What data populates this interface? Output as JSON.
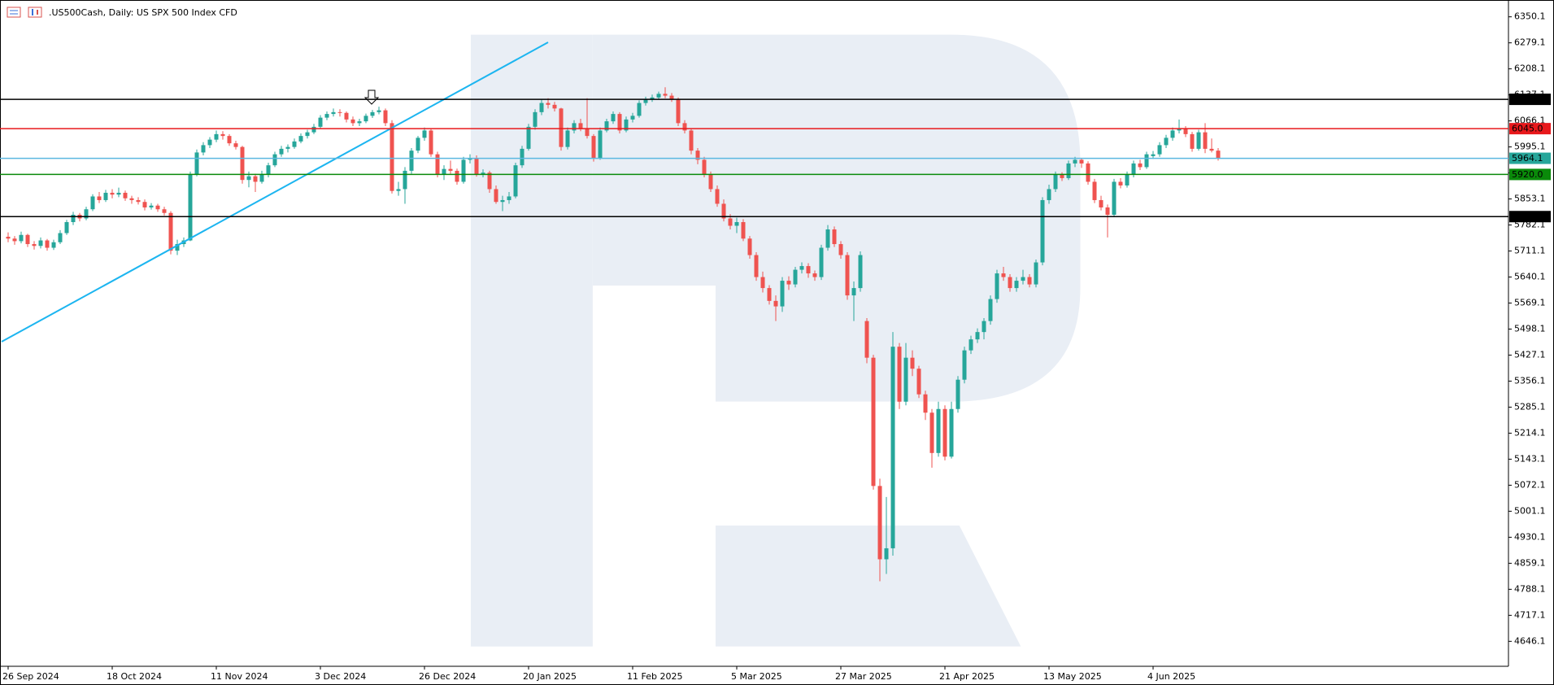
{
  "chart_data": {
    "type": "candlestick",
    "title": ".US500Cash, Daily:  US SPX 500 Index CFD",
    "up_color": "#26a69a",
    "down_color": "#ef5350",
    "ylim": [
      4578,
      6396
    ],
    "yticks": [
      6350.1,
      6279.1,
      6208.1,
      6137.1,
      6066.1,
      5995.1,
      5924.1,
      5853.1,
      5782.1,
      5711.1,
      5640.1,
      5569.1,
      5498.1,
      5427.1,
      5356.1,
      5285.1,
      5214.1,
      5143.1,
      5072.1,
      5001.1,
      4930.1,
      4859.1,
      4788.1,
      4717.1,
      4646.1
    ],
    "levels": [
      {
        "value": 6125,
        "label": "6125.0",
        "color": "#000000"
      },
      {
        "value": 6045,
        "label": "6045.0",
        "color": "#e8191c"
      },
      {
        "value": 5964.1,
        "color": "#5bb8e0",
        "box_color": "#26a69a"
      },
      {
        "value": 5920,
        "label": "5920.0",
        "color": "#0a8a0a"
      },
      {
        "value": 5805,
        "label": "5805.0",
        "color": "#000000"
      }
    ],
    "categories": [
      "26 Sep 2024",
      null,
      null,
      null,
      null,
      null,
      null,
      null,
      null,
      null,
      null,
      null,
      null,
      null,
      null,
      null,
      "18 Oct 2024",
      null,
      null,
      null,
      null,
      null,
      null,
      null,
      null,
      null,
      null,
      null,
      null,
      null,
      null,
      null,
      "11 Nov 2024",
      null,
      null,
      null,
      null,
      null,
      null,
      null,
      null,
      null,
      null,
      null,
      null,
      null,
      null,
      null,
      "3 Dec 2024",
      null,
      null,
      null,
      null,
      null,
      null,
      null,
      null,
      null,
      null,
      null,
      null,
      null,
      null,
      null,
      "26 Dec 2024",
      null,
      null,
      null,
      null,
      null,
      null,
      null,
      null,
      null,
      null,
      null,
      null,
      null,
      null,
      null,
      "20 Jan 2025",
      null,
      null,
      null,
      null,
      null,
      null,
      null,
      null,
      null,
      null,
      null,
      null,
      null,
      null,
      null,
      "11 Feb 2025",
      null,
      null,
      null,
      null,
      null,
      null,
      null,
      null,
      null,
      null,
      null,
      null,
      null,
      null,
      null,
      "5 Mar 2025",
      null,
      null,
      null,
      null,
      null,
      null,
      null,
      null,
      null,
      null,
      null,
      null,
      null,
      null,
      null,
      "27 Mar 2025",
      null,
      null,
      null,
      null,
      null,
      null,
      null,
      null,
      null,
      null,
      null,
      null,
      null,
      null,
      null,
      "21 Apr 2025",
      null,
      null,
      null,
      null,
      null,
      null,
      null,
      null,
      null,
      null,
      null,
      null,
      null,
      null,
      null,
      "13 May 2025",
      null,
      null,
      null,
      null,
      null,
      null,
      null,
      null,
      null,
      null,
      null,
      null,
      null,
      null,
      null,
      "4 Jun 2025",
      null,
      null,
      null,
      null,
      null,
      null,
      null,
      null,
      null,
      null
    ],
    "candles": [
      [
        5750,
        5762,
        5735,
        5745
      ],
      [
        5745,
        5752,
        5728,
        5738
      ],
      [
        5738,
        5764,
        5732,
        5755
      ],
      [
        5755,
        5758,
        5722,
        5730
      ],
      [
        5730,
        5738,
        5715,
        5725
      ],
      [
        5725,
        5748,
        5718,
        5740
      ],
      [
        5740,
        5744,
        5712,
        5720
      ],
      [
        5720,
        5742,
        5714,
        5735
      ],
      [
        5735,
        5768,
        5730,
        5760
      ],
      [
        5760,
        5796,
        5755,
        5790
      ],
      [
        5790,
        5818,
        5782,
        5810
      ],
      [
        5810,
        5815,
        5792,
        5800
      ],
      [
        5800,
        5832,
        5795,
        5825
      ],
      [
        5825,
        5866,
        5820,
        5860
      ],
      [
        5860,
        5872,
        5842,
        5850
      ],
      [
        5850,
        5878,
        5845,
        5870
      ],
      [
        5870,
        5880,
        5855,
        5865
      ],
      [
        5865,
        5884,
        5858,
        5870
      ],
      [
        5870,
        5876,
        5848,
        5855
      ],
      [
        5855,
        5862,
        5840,
        5850
      ],
      [
        5850,
        5858,
        5838,
        5845
      ],
      [
        5845,
        5852,
        5822,
        5830
      ],
      [
        5830,
        5842,
        5824,
        5835
      ],
      [
        5835,
        5840,
        5818,
        5825
      ],
      [
        5825,
        5832,
        5808,
        5815
      ],
      [
        5815,
        5820,
        5702,
        5712
      ],
      [
        5712,
        5742,
        5700,
        5730
      ],
      [
        5730,
        5748,
        5722,
        5740
      ],
      [
        5740,
        5928,
        5738,
        5920
      ],
      [
        5920,
        5988,
        5915,
        5980
      ],
      [
        5980,
        6008,
        5972,
        6000
      ],
      [
        6000,
        6022,
        5992,
        6015
      ],
      [
        6015,
        6040,
        6008,
        6030
      ],
      [
        6030,
        6038,
        6015,
        6025
      ],
      [
        6025,
        6030,
        5998,
        6005
      ],
      [
        6005,
        6012,
        5988,
        5995
      ],
      [
        5995,
        5998,
        5895,
        5905
      ],
      [
        5905,
        5928,
        5885,
        5915
      ],
      [
        5915,
        5922,
        5872,
        5900
      ],
      [
        5900,
        5930,
        5895,
        5920
      ],
      [
        5920,
        5952,
        5912,
        5945
      ],
      [
        5945,
        5982,
        5940,
        5975
      ],
      [
        5975,
        5998,
        5968,
        5990
      ],
      [
        5990,
        6002,
        5980,
        5995
      ],
      [
        5995,
        6018,
        5990,
        6010
      ],
      [
        6010,
        6032,
        6005,
        6025
      ],
      [
        6025,
        6042,
        6018,
        6035
      ],
      [
        6035,
        6058,
        6030,
        6050
      ],
      [
        6050,
        6082,
        6045,
        6075
      ],
      [
        6075,
        6092,
        6068,
        6085
      ],
      [
        6085,
        6100,
        6078,
        6090
      ],
      [
        6090,
        6098,
        6078,
        6088
      ],
      [
        6088,
        6092,
        6062,
        6070
      ],
      [
        6070,
        6078,
        6052,
        6060
      ],
      [
        6060,
        6072,
        6052,
        6065
      ],
      [
        6065,
        6086,
        6060,
        6080
      ],
      [
        6080,
        6096,
        6074,
        6090
      ],
      [
        6090,
        6105,
        6084,
        6095
      ],
      [
        6095,
        6100,
        6052,
        6060
      ],
      [
        6060,
        6068,
        5868,
        5875
      ],
      [
        5875,
        5900,
        5862,
        5880
      ],
      [
        5880,
        5940,
        5840,
        5930
      ],
      [
        5930,
        5992,
        5922,
        5985
      ],
      [
        5985,
        6025,
        5978,
        6020
      ],
      [
        6020,
        6048,
        6012,
        6040
      ],
      [
        6040,
        6046,
        5968,
        5975
      ],
      [
        5975,
        5982,
        5912,
        5920
      ],
      [
        5920,
        5945,
        5905,
        5935
      ],
      [
        5935,
        5958,
        5922,
        5930
      ],
      [
        5930,
        5936,
        5892,
        5900
      ],
      [
        5900,
        5968,
        5895,
        5960
      ],
      [
        5960,
        5975,
        5950,
        5965
      ],
      [
        5965,
        5972,
        5914,
        5920
      ],
      [
        5920,
        5934,
        5912,
        5925
      ],
      [
        5925,
        5930,
        5870,
        5880
      ],
      [
        5880,
        5890,
        5840,
        5845
      ],
      [
        5845,
        5862,
        5820,
        5850
      ],
      [
        5850,
        5872,
        5840,
        5860
      ],
      [
        5860,
        5952,
        5855,
        5945
      ],
      [
        5945,
        5998,
        5938,
        5990
      ],
      [
        5990,
        6058,
        5985,
        6050
      ],
      [
        6050,
        6098,
        6042,
        6090
      ],
      [
        6090,
        6125,
        6082,
        6115
      ],
      [
        6115,
        6128,
        6100,
        6110
      ],
      [
        6110,
        6118,
        6092,
        6100
      ],
      [
        6100,
        6102,
        5985,
        5995
      ],
      [
        5995,
        6048,
        5988,
        6040
      ],
      [
        6040,
        6068,
        6032,
        6060
      ],
      [
        6060,
        6072,
        6038,
        6045
      ],
      [
        6045,
        6128,
        6018,
        6025
      ],
      [
        6025,
        6030,
        5955,
        5965
      ],
      [
        5965,
        6048,
        5960,
        6040
      ],
      [
        6040,
        6072,
        6035,
        6065
      ],
      [
        6065,
        6092,
        6058,
        6085
      ],
      [
        6085,
        6090,
        6032,
        6040
      ],
      [
        6040,
        6078,
        6035,
        6070
      ],
      [
        6070,
        6088,
        6062,
        6080
      ],
      [
        6080,
        6122,
        6075,
        6115
      ],
      [
        6115,
        6132,
        6108,
        6125
      ],
      [
        6125,
        6138,
        6118,
        6130
      ],
      [
        6130,
        6146,
        6124,
        6140
      ],
      [
        6140,
        6158,
        6128,
        6135
      ],
      [
        6135,
        6142,
        6118,
        6125
      ],
      [
        6125,
        6130,
        6052,
        6060
      ],
      [
        6060,
        6068,
        6032,
        6040
      ],
      [
        6040,
        6046,
        5975,
        5985
      ],
      [
        5985,
        5992,
        5948,
        5960
      ],
      [
        5960,
        5968,
        5912,
        5920
      ],
      [
        5920,
        5928,
        5872,
        5880
      ],
      [
        5880,
        5890,
        5832,
        5840
      ],
      [
        5840,
        5852,
        5792,
        5800
      ],
      [
        5800,
        5812,
        5770,
        5780
      ],
      [
        5780,
        5802,
        5760,
        5790
      ],
      [
        5790,
        5798,
        5738,
        5745
      ],
      [
        5745,
        5752,
        5690,
        5700
      ],
      [
        5700,
        5708,
        5630,
        5640
      ],
      [
        5640,
        5655,
        5598,
        5610
      ],
      [
        5610,
        5618,
        5565,
        5575
      ],
      [
        5575,
        5590,
        5520,
        5560
      ],
      [
        5560,
        5640,
        5545,
        5630
      ],
      [
        5630,
        5642,
        5605,
        5620
      ],
      [
        5620,
        5668,
        5612,
        5660
      ],
      [
        5660,
        5680,
        5650,
        5670
      ],
      [
        5670,
        5678,
        5638,
        5650
      ],
      [
        5650,
        5658,
        5630,
        5640
      ],
      [
        5640,
        5728,
        5632,
        5720
      ],
      [
        5720,
        5782,
        5712,
        5770
      ],
      [
        5770,
        5778,
        5722,
        5730
      ],
      [
        5730,
        5738,
        5690,
        5700
      ],
      [
        5700,
        5708,
        5578,
        5590
      ],
      [
        5590,
        5628,
        5520,
        5610
      ],
      [
        5610,
        5710,
        5600,
        5700
      ],
      [
        5520,
        5528,
        5405,
        5420
      ],
      [
        5420,
        5428,
        5060,
        5070
      ],
      [
        5070,
        5090,
        4810,
        4870
      ],
      [
        4870,
        5040,
        4830,
        4900
      ],
      [
        4900,
        5490,
        4880,
        5450
      ],
      [
        5450,
        5460,
        5280,
        5300
      ],
      [
        5300,
        5460,
        5290,
        5420
      ],
      [
        5420,
        5440,
        5370,
        5390
      ],
      [
        5390,
        5398,
        5310,
        5320
      ],
      [
        5320,
        5330,
        5250,
        5270
      ],
      [
        5270,
        5280,
        5120,
        5160
      ],
      [
        5160,
        5300,
        5150,
        5280
      ],
      [
        5280,
        5290,
        5140,
        5150
      ],
      [
        5150,
        5300,
        5145,
        5280
      ],
      [
        5280,
        5370,
        5270,
        5360
      ],
      [
        5360,
        5450,
        5350,
        5440
      ],
      [
        5440,
        5480,
        5430,
        5470
      ],
      [
        5470,
        5500,
        5460,
        5490
      ],
      [
        5490,
        5528,
        5470,
        5520
      ],
      [
        5520,
        5590,
        5510,
        5580
      ],
      [
        5580,
        5660,
        5570,
        5650
      ],
      [
        5650,
        5668,
        5630,
        5640
      ],
      [
        5640,
        5648,
        5600,
        5610
      ],
      [
        5610,
        5640,
        5600,
        5630
      ],
      [
        5630,
        5660,
        5620,
        5640
      ],
      [
        5640,
        5648,
        5612,
        5620
      ],
      [
        5620,
        5688,
        5612,
        5680
      ],
      [
        5680,
        5858,
        5672,
        5850
      ],
      [
        5850,
        5892,
        5840,
        5880
      ],
      [
        5880,
        5928,
        5872,
        5920
      ],
      [
        5920,
        5926,
        5902,
        5910
      ],
      [
        5910,
        5958,
        5905,
        5950
      ],
      [
        5950,
        5968,
        5940,
        5960
      ],
      [
        5960,
        5964,
        5938,
        5950
      ],
      [
        5950,
        5956,
        5892,
        5900
      ],
      [
        5900,
        5908,
        5842,
        5850
      ],
      [
        5850,
        5862,
        5822,
        5830
      ],
      [
        5830,
        5838,
        5748,
        5810
      ],
      [
        5810,
        5908,
        5805,
        5900
      ],
      [
        5900,
        5910,
        5882,
        5890
      ],
      [
        5890,
        5928,
        5884,
        5920
      ],
      [
        5920,
        5958,
        5912,
        5950
      ],
      [
        5950,
        5960,
        5932,
        5940
      ],
      [
        5940,
        5982,
        5935,
        5975
      ],
      [
        5970,
        5984,
        5962,
        5975
      ],
      [
        5975,
        6008,
        5968,
        6000
      ],
      [
        6000,
        6028,
        5992,
        6020
      ],
      [
        6020,
        6048,
        6012,
        6040
      ],
      [
        6040,
        6070,
        6032,
        6045
      ],
      [
        6045,
        6052,
        6022,
        6030
      ],
      [
        6030,
        6036,
        5982,
        5990
      ],
      [
        5990,
        6042,
        5985,
        6035
      ],
      [
        6035,
        6060,
        5978,
        5990
      ],
      [
        5990,
        6018,
        5980,
        5985
      ],
      [
        5985,
        5992,
        5958,
        5965
      ]
    ]
  }
}
